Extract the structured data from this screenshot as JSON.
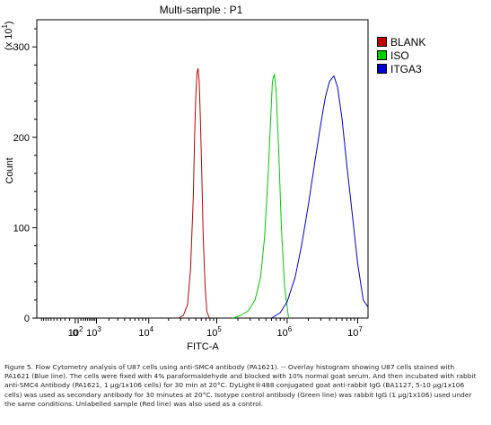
{
  "chart_data": {
    "type": "line",
    "title": "Multi-sample : P1",
    "xlabel": "FITC-A",
    "ylabel": "Count",
    "y_multiplier_label": "(x 10",
    "y_multiplier_exp": "1",
    "x_scale": "log",
    "xlim": [
      -2500,
      14000000
    ],
    "ylim": [
      0,
      330
    ],
    "x_ticks": [
      {
        "value": 0,
        "base": "0",
        "exp": ""
      },
      {
        "value": 100,
        "base": "10",
        "exp": "2"
      },
      {
        "value": 1000,
        "base": "10",
        "exp": "3"
      },
      {
        "value": 10000,
        "base": "10",
        "exp": "4"
      },
      {
        "value": 100000,
        "base": "10",
        "exp": "5"
      },
      {
        "value": 1000000,
        "base": "10",
        "exp": "6"
      },
      {
        "value": 10000000,
        "base": "10",
        "exp": "7"
      }
    ],
    "y_ticks": [
      0,
      100,
      200,
      300
    ],
    "legend_position": "right",
    "series": [
      {
        "name": "BLANK",
        "color": "#c00000",
        "x": [
          28000,
          33000,
          38000,
          42000,
          46000,
          48000,
          50000,
          52000,
          54000,
          56000,
          58000,
          61000,
          64000,
          68000,
          72000,
          78000
        ],
        "y": [
          0,
          3,
          15,
          55,
          135,
          200,
          245,
          272,
          276,
          262,
          225,
          160,
          90,
          35,
          8,
          0
        ]
      },
      {
        "name": "ISO",
        "color": "#00cc00",
        "x": [
          170000,
          220000,
          280000,
          350000,
          420000,
          480000,
          540000,
          580000,
          620000,
          660000,
          700000,
          760000,
          830000,
          920000,
          1050000
        ],
        "y": [
          0,
          3,
          8,
          20,
          45,
          90,
          160,
          215,
          262,
          270,
          250,
          185,
          100,
          35,
          0
        ]
      },
      {
        "name": "ITGA3",
        "color": "#0000cc",
        "x": [
          600000,
          800000,
          1000000,
          1300000,
          1600000,
          2000000,
          2500000,
          3000000,
          3500000,
          4000000,
          4600000,
          5200000,
          6000000,
          7000000,
          8500000,
          10000000,
          12000000,
          14000000
        ],
        "y": [
          0,
          6,
          18,
          45,
          80,
          125,
          175,
          215,
          245,
          262,
          268,
          255,
          220,
          170,
          110,
          60,
          20,
          12
        ]
      }
    ]
  },
  "caption": "Figure 5. Flow Cytometry analysis of U87 cells using anti-SMC4 antibody (PA1621).  -- Overlay histogram showing U87 cells stained with PA1621 (Blue line). The cells were fixed with 4% paraformaldehyde and blocked with 10% normal goat serum.  And then incubated with rabbit anti-SMC4 Antibody (PA1621, 1 μg/1x106 cells) for 30 min at 20°C. DyLight®488 conjugated goat anti-rabbit IgG (BA1127, 5-10 μg/1x106 cells) was used as secondary antibody for 30 minutes at 20°C. Isotype control antibody (Green line) was rabbit IgG (1 μg/1x106) used under the same conditions. Unlabelled sample (Red line) was also used as a control."
}
